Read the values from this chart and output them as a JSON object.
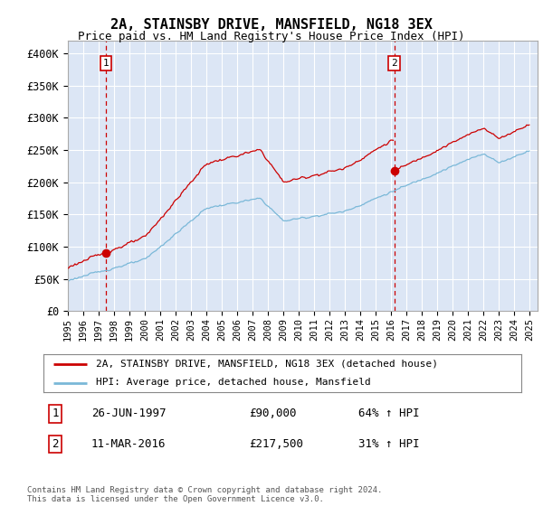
{
  "title": "2A, STAINSBY DRIVE, MANSFIELD, NG18 3EX",
  "subtitle": "Price paid vs. HM Land Registry's House Price Index (HPI)",
  "background_color": "#dce6f5",
  "plot_bg_color": "#dce6f5",
  "sale1_date": "26-JUN-1997",
  "sale1_price": 90000,
  "sale1_hpi": "64% ↑ HPI",
  "sale1_year": 1997.48,
  "sale2_date": "11-MAR-2016",
  "sale2_price": 217500,
  "sale2_hpi": "31% ↑ HPI",
  "sale2_year": 2016.19,
  "legend_line1": "2A, STAINSBY DRIVE, MANSFIELD, NG18 3EX (detached house)",
  "legend_line2": "HPI: Average price, detached house, Mansfield",
  "footer": "Contains HM Land Registry data © Crown copyright and database right 2024.\nThis data is licensed under the Open Government Licence v3.0.",
  "hpi_color": "#7ab8d8",
  "sale_color": "#cc0000",
  "vline_color": "#cc0000",
  "ylim": [
    0,
    420000
  ],
  "yticks": [
    0,
    50000,
    100000,
    150000,
    200000,
    250000,
    300000,
    350000,
    400000
  ],
  "ytick_labels": [
    "£0",
    "£50K",
    "£100K",
    "£150K",
    "£200K",
    "£250K",
    "£300K",
    "£350K",
    "£400K"
  ],
  "xlim_start": 1995.0,
  "xlim_end": 2025.5
}
